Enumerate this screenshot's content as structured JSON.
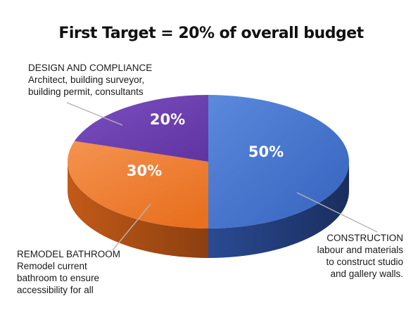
{
  "chart_data": {
    "type": "pie",
    "title": "First Target = 20% of overall budget",
    "slices": [
      {
        "label": "CONSTRUCTION",
        "value": 50,
        "value_label": "50%",
        "description": [
          "labour and materials",
          "to construct studio",
          "and gallery walls."
        ],
        "color": "#3f6fcb",
        "side_color": "#21386e"
      },
      {
        "label": "REMODEL BATHROOM",
        "value": 30,
        "value_label": "30%",
        "description": [
          "Remodel current",
          "bathroom to ensure",
          "accessibility for all"
        ],
        "color": "#ee7a30",
        "side_color": "#a54d17"
      },
      {
        "label": "DESIGN AND COMPLIANCE",
        "value": 20,
        "value_label": "20%",
        "description": [
          "Architect, building surveyor,",
          "building permit, consultants"
        ],
        "color": "#6b3fae",
        "side_color": "#3f236c"
      }
    ]
  }
}
